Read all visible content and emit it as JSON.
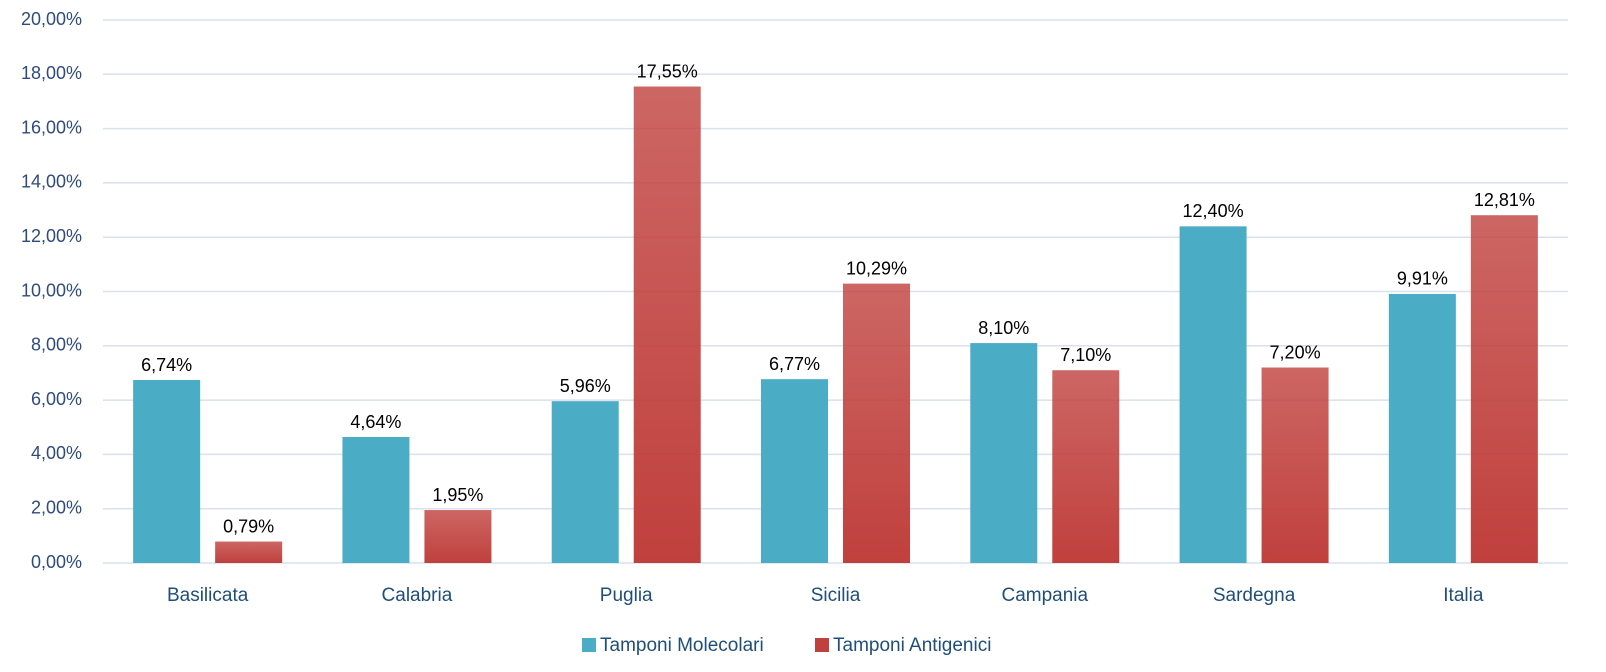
{
  "chart_data": {
    "type": "bar",
    "categories": [
      "Basilicata",
      "Calabria",
      "Puglia",
      "Sicilia",
      "Campania",
      "Sardegna",
      "Italia"
    ],
    "series": [
      {
        "name": "Tamponi Molecolari",
        "color": "#4bacc6",
        "values": [
          6.74,
          4.64,
          5.96,
          6.77,
          8.1,
          12.4,
          9.91
        ],
        "value_labels": [
          "6,74%",
          "4,64%",
          "5,96%",
          "6,77%",
          "8,10%",
          "12,40%",
          "9,91%"
        ]
      },
      {
        "name": "Tamponi Antigenici",
        "color": "#c0403d",
        "values": [
          0.79,
          1.95,
          17.55,
          10.29,
          7.1,
          7.2,
          12.81
        ],
        "value_labels": [
          "0,79%",
          "1,95%",
          "17,55%",
          "10,29%",
          "7,10%",
          "7,20%",
          "12,81%"
        ]
      }
    ],
    "ylim": [
      0,
      20
    ],
    "yticks": [
      {
        "value": 0,
        "label": "0,00%"
      },
      {
        "value": 2,
        "label": "2,00%"
      },
      {
        "value": 4,
        "label": "4,00%"
      },
      {
        "value": 6,
        "label": "6,00%"
      },
      {
        "value": 8,
        "label": "8,00%"
      },
      {
        "value": 10,
        "label": "10,00%"
      },
      {
        "value": 12,
        "label": "12,00%"
      },
      {
        "value": 14,
        "label": "14,00%"
      },
      {
        "value": 16,
        "label": "16,00%"
      },
      {
        "value": 18,
        "label": "18,00%"
      },
      {
        "value": 20,
        "label": "20,00%"
      }
    ],
    "grid": true,
    "legend": "bottom"
  }
}
